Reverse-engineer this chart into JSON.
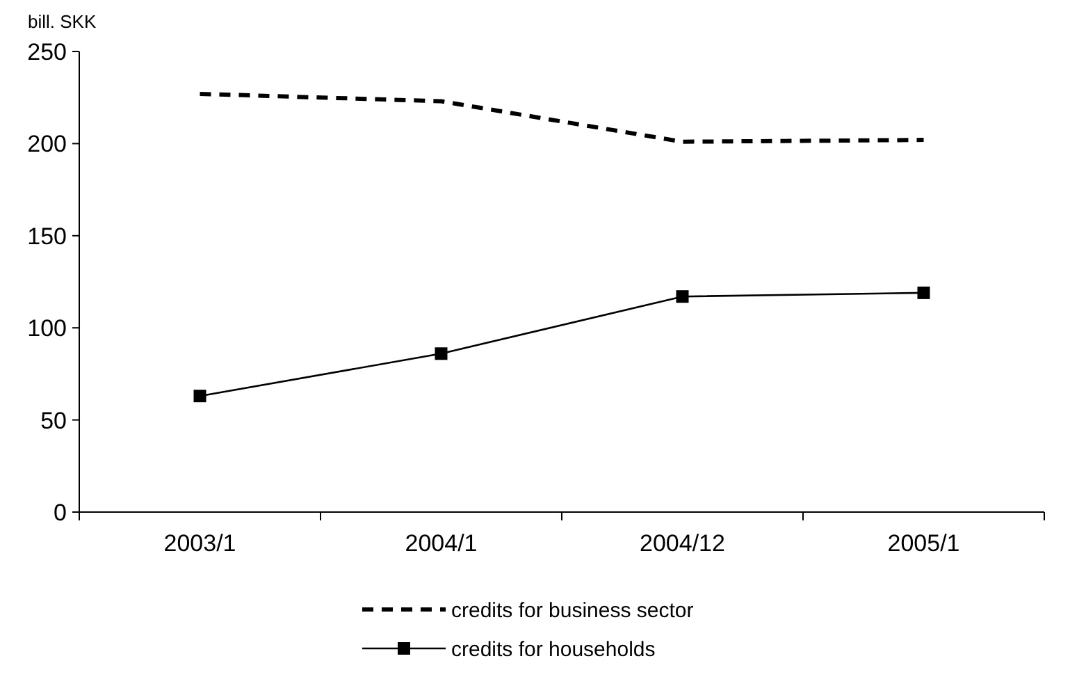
{
  "chart_data": {
    "type": "line",
    "ylabel": "bill. SKK",
    "categories": [
      "2003/1",
      "2004/1",
      "2004/12",
      "2005/1"
    ],
    "series": [
      {
        "name": "credits for business sector",
        "color": "#000000",
        "values": [
          227,
          223,
          201,
          202
        ],
        "line_style": "dashed",
        "marker": "none"
      },
      {
        "name": "credits for households",
        "color": "#000000",
        "values": [
          63,
          86,
          117,
          119
        ],
        "line_style": "solid",
        "marker": "square"
      }
    ],
    "ylim": [
      0,
      250
    ],
    "yticks": [
      0,
      50,
      100,
      150,
      200,
      250
    ],
    "grid": false,
    "legend": "bottom"
  }
}
